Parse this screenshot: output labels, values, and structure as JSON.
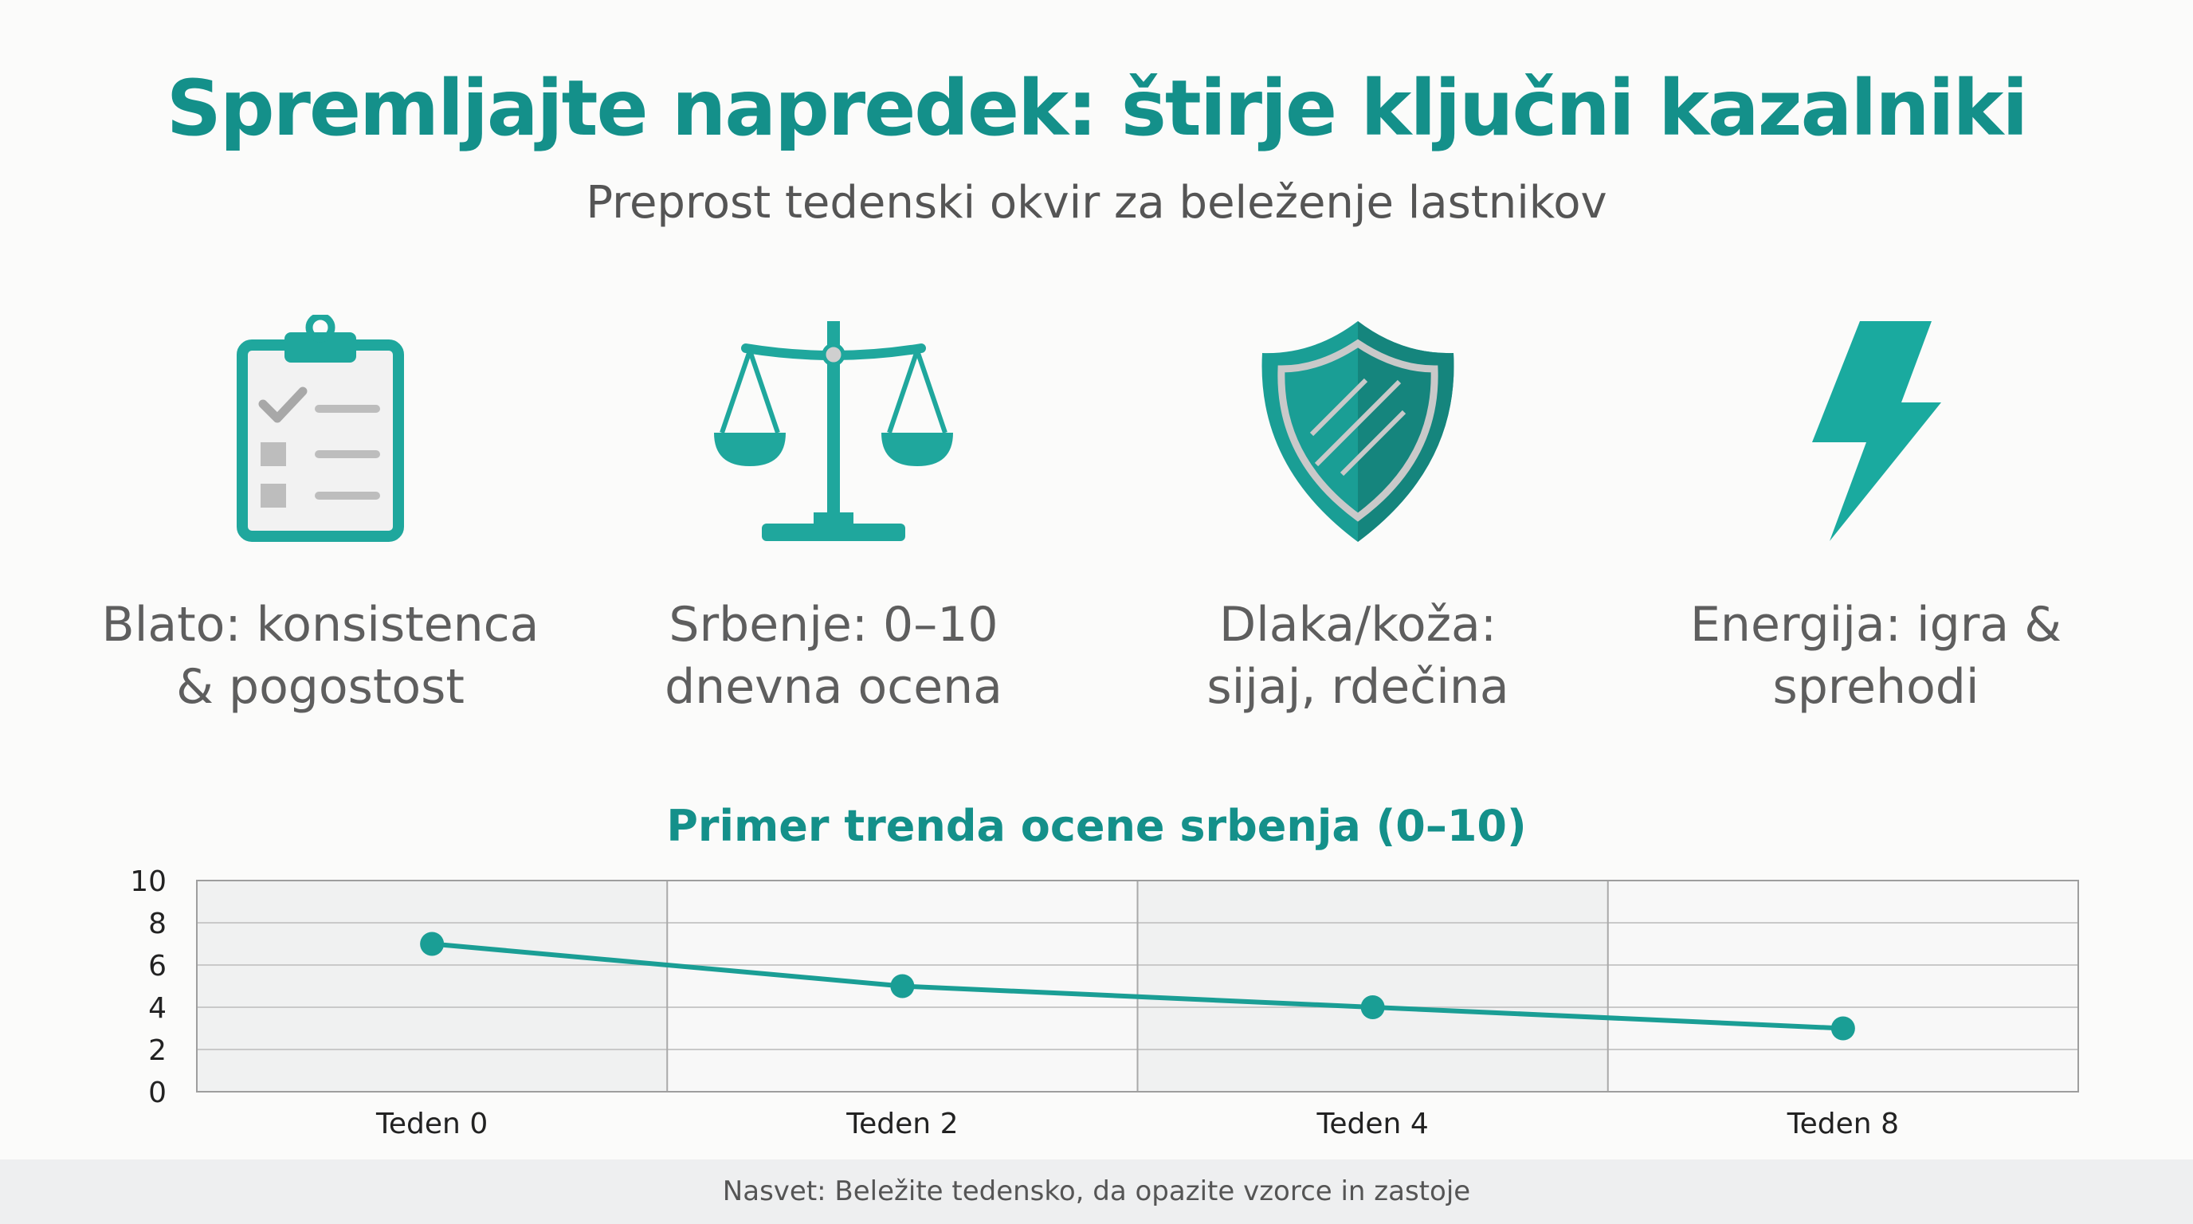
{
  "header": {
    "title": "Spremljajte napredek: štirje ključni kazalniki",
    "subtitle": "Preprost tedenski okvir za beleženje lastnikov"
  },
  "indicators": [
    {
      "icon": "clipboard-checklist-icon",
      "line1": "Blato: konsistenca",
      "line2": "& pogostost"
    },
    {
      "icon": "balance-scale-icon",
      "line1": "Srbenje: 0–10",
      "line2": "dnevna ocena"
    },
    {
      "icon": "shield-icon",
      "line1": "Dlaka/koža:",
      "line2": "sijaj, rdečina"
    },
    {
      "icon": "lightning-bolt-icon",
      "line1": "Energija: igra &",
      "line2": "sprehodi"
    }
  ],
  "colors": {
    "accent": "#14908a",
    "text": "#5e5e5e",
    "grid": "#c9c9c9"
  },
  "chart_data": {
    "type": "line",
    "title": "Primer trenda ocene srbenja (0–10)",
    "categories": [
      "Teden 0",
      "Teden 2",
      "Teden 4",
      "Teden 8"
    ],
    "values": [
      7,
      5,
      4,
      3
    ],
    "ylim": [
      0,
      10
    ],
    "yticks": [
      "0",
      "2",
      "4",
      "6",
      "8",
      "10"
    ],
    "grid": true,
    "xlabel": "",
    "ylabel": ""
  },
  "footer": {
    "tip": "Nasvet: Beležite tedensko, da opazite vzorce in zastoje"
  }
}
